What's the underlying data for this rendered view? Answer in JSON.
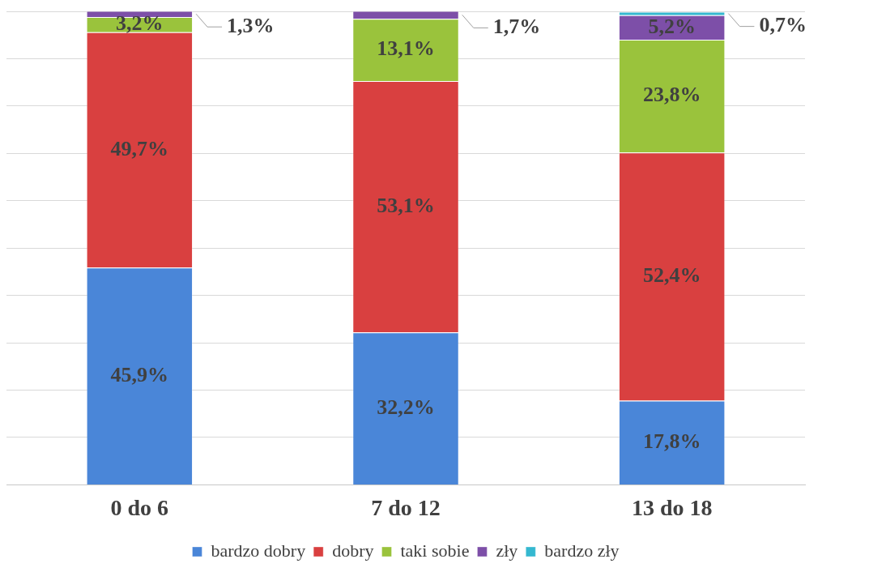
{
  "chart_data": {
    "type": "bar",
    "stacked": true,
    "categories": [
      "0 do 6",
      "7 do 12",
      "13 do 18"
    ],
    "ylim": [
      0,
      100
    ],
    "yticks": [
      {
        "value": 0,
        "label": null
      },
      {
        "value": 10,
        "label": null
      },
      {
        "value": 20,
        "label": null
      },
      {
        "value": 30,
        "label": null
      },
      {
        "value": 40,
        "label": null
      },
      {
        "value": 50,
        "label": null
      },
      {
        "value": 60,
        "label": null
      },
      {
        "value": 70,
        "label": null
      },
      {
        "value": 80,
        "label": null
      },
      {
        "value": 90,
        "label": null
      },
      {
        "value": 100,
        "label": null
      }
    ],
    "tick_labels": "x",
    "grid": "y",
    "legend": "bottom",
    "series": [
      {
        "name": "bardzo dobry",
        "color": "#4a86d8",
        "values": [
          45.9,
          32.2,
          17.8
        ],
        "value_labels": [
          "45,9%",
          "32,2%",
          "17,8%"
        ]
      },
      {
        "name": "dobry",
        "color": "#d94040",
        "values": [
          49.7,
          53.1,
          52.4
        ],
        "value_labels": [
          "49,7%",
          "53,1%",
          "52,4%"
        ]
      },
      {
        "name": "taki sobie",
        "color": "#9ac33c",
        "values": [
          3.2,
          13.1,
          23.8
        ],
        "value_labels": [
          "3,2%",
          "13,1%",
          "23,8%"
        ]
      },
      {
        "name": "zły",
        "color": "#7d4fa8",
        "values": [
          1.3,
          1.7,
          5.2
        ],
        "value_labels": [
          "1,3%",
          "1,7%",
          "5,2%"
        ]
      },
      {
        "name": "bardzo zły",
        "color": "#35b8d0",
        "values": [
          null,
          null,
          0.7
        ],
        "value_labels": [
          null,
          null,
          "0,7%"
        ]
      }
    ]
  }
}
